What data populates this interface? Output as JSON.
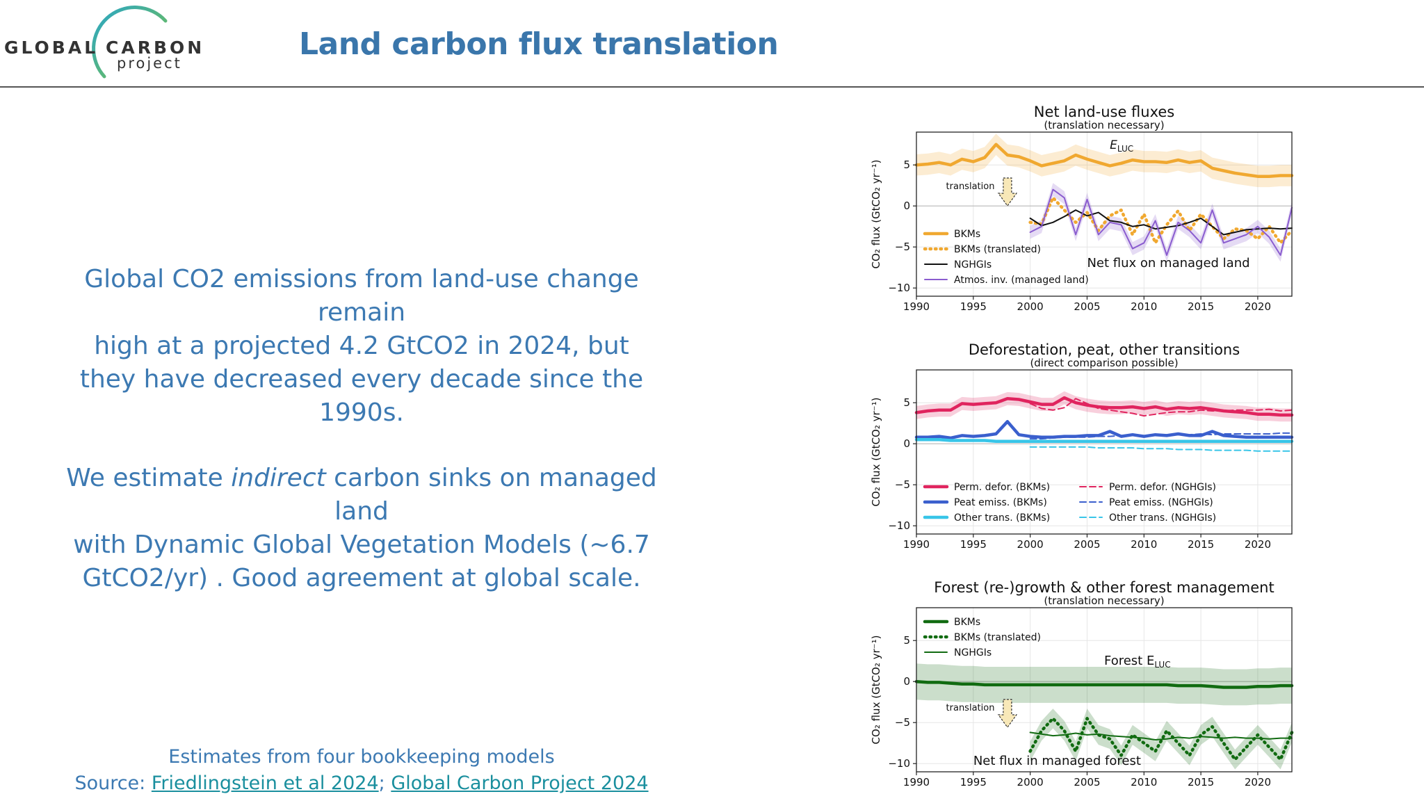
{
  "header": {
    "title": "Land carbon flux translation",
    "logo": {
      "word_left": "GLOBAL",
      "word_right": "CARBON",
      "word_sub": "project",
      "ring_colors": [
        "#2aa6c7",
        "#7cc243"
      ]
    }
  },
  "messages": {
    "msg1": {
      "line1": "Global CO2 emissions from land-use change remain",
      "line2": "high at a projected 4.2 GtCO2 in 2024, but",
      "line3": "they have decreased every decade since the 1990s."
    },
    "msg2": {
      "line1_pre": "We estimate ",
      "line1_em": "indirect",
      "line1_post": " carbon sinks on managed land",
      "line2": "with Dynamic Global Vegetation Models (~6.7",
      "line3": "GtCO2/yr) . Good agreement at global scale."
    }
  },
  "footer": {
    "line1": "Estimates from four bookkeeping models",
    "source_prefix": "Source: ",
    "link1": "Friedlingstein et al 2024",
    "sep": "; ",
    "link2": "Global Carbon Project 2024"
  },
  "colors": {
    "text_blue": "#3c79b2",
    "title_blue": "#3a76ab",
    "link_teal": "#1a8f9e",
    "bkm_orange": "#f0a830",
    "ngh_black": "#111111",
    "atmos_purple": "#8a5ccf",
    "defor_red": "#e0245e",
    "peat_blue": "#3a5fcd",
    "other_cyan": "#38c5e8",
    "forest_green": "#116b11"
  },
  "chart_data": [
    {
      "type": "line",
      "title": "Net land-use fluxes",
      "subtitle": "(translation necessary)",
      "ylabel": "CO₂ flux (GtCO₂ yr⁻¹)",
      "xlim": [
        1990,
        2023
      ],
      "ylim": [
        -11,
        9
      ],
      "xticks": [
        1990,
        1995,
        2000,
        2005,
        2010,
        2015,
        2020
      ],
      "yticks": [
        5,
        0,
        -5,
        -10
      ],
      "grid": true,
      "legend": "lower-left",
      "annotations": {
        "eluc_label": "E",
        "eluc_sub": "LUC",
        "translation": "translation",
        "net_flux": "Net flux on managed land"
      },
      "series": [
        {
          "name": "BKMs",
          "style": "thick",
          "color": "#f0a830",
          "x_start": 1990,
          "band": 1.3,
          "values": [
            5.0,
            5.1,
            5.3,
            5.0,
            5.7,
            5.4,
            5.9,
            7.5,
            6.2,
            6.0,
            5.5,
            4.9,
            5.2,
            5.5,
            6.2,
            5.7,
            5.3,
            4.9,
            5.2,
            5.6,
            5.4,
            5.4,
            5.3,
            5.6,
            5.3,
            5.5,
            4.6,
            4.3,
            4.0,
            3.8,
            3.6,
            3.6,
            3.7,
            3.7
          ]
        },
        {
          "name": "BKMs (translated)",
          "style": "dotted",
          "color": "#f0a830",
          "x_start": 2000,
          "values": [
            -2.0,
            -2.2,
            1.0,
            -0.5,
            -2.0,
            -0.8,
            -3.0,
            -1.2,
            -0.5,
            -3.5,
            -1.0,
            -4.5,
            -2.3,
            -0.6,
            -3.0,
            -1.0,
            -2.5,
            -4.0,
            -2.8,
            -3.0,
            -4.0,
            -2.5,
            -4.5,
            -3.0
          ]
        },
        {
          "name": "NGHGIs",
          "style": "solid",
          "color": "#111111",
          "x_start": 2000,
          "values": [
            -1.5,
            -2.4,
            -2.0,
            -1.3,
            -0.5,
            -1.2,
            -0.8,
            -1.8,
            -2.0,
            -2.5,
            -2.3,
            -2.8,
            -2.6,
            -2.4,
            -2.0,
            -1.5,
            -2.5,
            -3.5,
            -3.2,
            -2.9,
            -2.8,
            -2.7,
            -2.8,
            -2.7
          ]
        },
        {
          "name": "Atmos. inv. (managed land)",
          "style": "solid",
          "color": "#8a5ccf",
          "x_start": 2000,
          "band": 0.8,
          "values": [
            -3.2,
            -2.5,
            2.0,
            1.0,
            -3.5,
            0.8,
            -3.5,
            -2.0,
            -2.3,
            -5.2,
            -4.5,
            -1.8,
            -6.0,
            -2.0,
            -3.0,
            -4.5,
            -0.5,
            -4.5,
            -4.0,
            -3.5,
            -2.5,
            -3.8,
            -6.0,
            -0.2
          ]
        }
      ]
    },
    {
      "type": "line",
      "title": "Deforestation, peat, other transitions",
      "subtitle": "(direct comparison possible)",
      "ylabel": "CO₂ flux (GtCO₂ yr⁻¹)",
      "xlim": [
        1990,
        2023
      ],
      "ylim": [
        -11,
        9
      ],
      "xticks": [
        1990,
        1995,
        2000,
        2005,
        2010,
        2015,
        2020
      ],
      "yticks": [
        5,
        0,
        -5,
        -10
      ],
      "grid": true,
      "legend": "lower",
      "series": [
        {
          "name": "Perm. defor. (BKMs)",
          "style": "thick",
          "color": "#e0245e",
          "x_start": 1990,
          "band": 0.8,
          "values": [
            3.8,
            4.0,
            4.1,
            4.1,
            4.9,
            4.8,
            4.9,
            5.0,
            5.5,
            5.4,
            5.1,
            4.8,
            4.8,
            5.6,
            5.0,
            4.7,
            4.5,
            4.4,
            4.4,
            4.5,
            4.3,
            4.5,
            4.2,
            4.4,
            4.3,
            4.4,
            4.2,
            4.0,
            3.9,
            3.8,
            3.6,
            3.6,
            3.5,
            3.5
          ]
        },
        {
          "name": "Peat emiss. (BKMs)",
          "style": "thick",
          "color": "#3a5fcd",
          "x_start": 1990,
          "values": [
            0.8,
            0.8,
            0.9,
            0.7,
            1.0,
            0.9,
            1.0,
            1.2,
            2.7,
            1.1,
            0.9,
            0.8,
            0.8,
            0.9,
            0.9,
            1.0,
            1.0,
            1.5,
            0.9,
            1.1,
            0.9,
            1.1,
            1.0,
            1.2,
            1.0,
            1.0,
            1.5,
            1.0,
            0.9,
            0.8,
            0.8,
            0.8,
            0.8,
            0.8
          ]
        },
        {
          "name": "Other trans. (BKMs)",
          "style": "thick",
          "color": "#38c5e8",
          "x_start": 1990,
          "values": [
            0.5,
            0.5,
            0.5,
            0.4,
            0.4,
            0.4,
            0.4,
            0.3,
            0.3,
            0.3,
            0.3,
            0.3,
            0.3,
            0.3,
            0.3,
            0.3,
            0.3,
            0.3,
            0.3,
            0.3,
            0.3,
            0.3,
            0.3,
            0.3,
            0.3,
            0.3,
            0.3,
            0.3,
            0.3,
            0.3,
            0.3,
            0.3,
            0.3,
            0.3
          ]
        },
        {
          "name": "Perm. defor. (NGHGIs)",
          "style": "dashed",
          "color": "#e0245e",
          "x_start": 2000,
          "values": [
            4.9,
            4.3,
            4.1,
            4.4,
            5.5,
            4.9,
            4.3,
            4.1,
            3.9,
            3.7,
            3.4,
            3.6,
            3.8,
            3.9,
            3.9,
            4.1,
            4.0,
            4.0,
            4.1,
            4.1,
            4.1,
            4.2,
            4.0,
            4.1
          ]
        },
        {
          "name": "Peat emiss. (NGHGIs)",
          "style": "dashed",
          "color": "#3a5fcd",
          "x_start": 2000,
          "values": [
            0.6,
            0.6,
            0.7,
            0.8,
            0.8,
            0.8,
            0.9,
            0.9,
            1.0,
            1.0,
            1.0,
            1.0,
            1.1,
            1.1,
            1.1,
            1.2,
            1.1,
            1.2,
            1.2,
            1.2,
            1.2,
            1.2,
            1.3,
            1.3
          ]
        },
        {
          "name": "Other trans. (NGHGIs)",
          "style": "dashed",
          "color": "#38c5e8",
          "x_start": 2000,
          "values": [
            -0.4,
            -0.4,
            -0.4,
            -0.4,
            -0.4,
            -0.4,
            -0.5,
            -0.5,
            -0.5,
            -0.5,
            -0.6,
            -0.6,
            -0.6,
            -0.7,
            -0.7,
            -0.7,
            -0.8,
            -0.8,
            -0.8,
            -0.8,
            -0.9,
            -0.9,
            -0.9,
            -0.9
          ]
        }
      ]
    },
    {
      "type": "line",
      "title": "Forest (re-)growth & other forest management",
      "subtitle": "(translation necessary)",
      "ylabel": "CO₂ flux (GtCO₂ yr⁻¹)",
      "xlim": [
        1990,
        2023
      ],
      "ylim": [
        -11,
        9
      ],
      "xticks": [
        1990,
        1995,
        2000,
        2005,
        2010,
        2015,
        2020
      ],
      "yticks": [
        5,
        0,
        -5,
        -10
      ],
      "grid": true,
      "legend": "upper-left",
      "annotations": {
        "forest_eluc_pre": "Forest E",
        "forest_eluc_sub": "LUC",
        "translation": "translation",
        "net_flux": "Net flux in managed forest"
      },
      "series": [
        {
          "name": "BKMs",
          "style": "thick",
          "color": "#116b11",
          "x_start": 1990,
          "band": 2.2,
          "values": [
            0.0,
            -0.1,
            -0.1,
            -0.2,
            -0.3,
            -0.3,
            -0.4,
            -0.4,
            -0.4,
            -0.4,
            -0.4,
            -0.4,
            -0.4,
            -0.4,
            -0.4,
            -0.4,
            -0.4,
            -0.4,
            -0.4,
            -0.4,
            -0.4,
            -0.4,
            -0.4,
            -0.5,
            -0.5,
            -0.5,
            -0.6,
            -0.7,
            -0.7,
            -0.7,
            -0.6,
            -0.6,
            -0.5,
            -0.5
          ]
        },
        {
          "name": "BKMs (translated)",
          "style": "dotted",
          "color": "#116b11",
          "x_start": 2000,
          "band": 1.2,
          "values": [
            -8.5,
            -6.0,
            -4.5,
            -6.0,
            -8.5,
            -4.5,
            -6.5,
            -7.0,
            -9.0,
            -6.5,
            -7.5,
            -8.5,
            -6.0,
            -7.5,
            -9.0,
            -6.5,
            -5.5,
            -7.5,
            -9.5,
            -8.0,
            -6.5,
            -8.0,
            -9.5,
            -6.2
          ]
        },
        {
          "name": "NGHGIs",
          "style": "solid",
          "color": "#116b11",
          "x_start": 2000,
          "values": [
            -6.2,
            -6.4,
            -6.6,
            -6.5,
            -6.3,
            -6.5,
            -6.4,
            -6.6,
            -6.7,
            -6.8,
            -6.9,
            -7.1,
            -7.0,
            -6.8,
            -6.9,
            -6.7,
            -6.8,
            -6.9,
            -6.8,
            -6.9,
            -6.9,
            -7.0,
            -6.9,
            -6.9
          ]
        }
      ]
    }
  ]
}
